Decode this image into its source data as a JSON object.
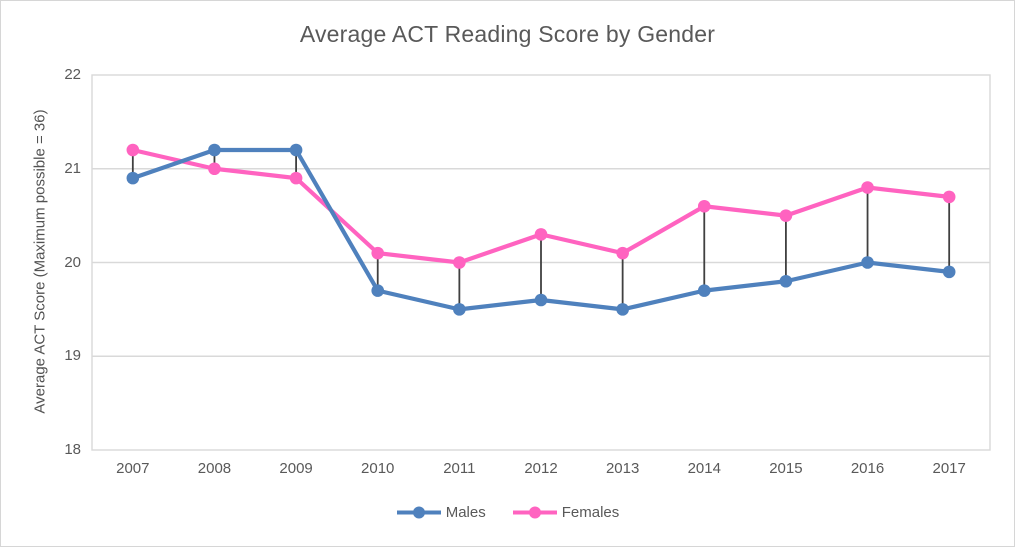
{
  "chart_data": {
    "type": "line",
    "title": "Average ACT Reading Score by Gender",
    "xlabel": "",
    "ylabel": "Average ACT Score (Maximum possible = 36)",
    "categories": [
      "2007",
      "2008",
      "2009",
      "2010",
      "2011",
      "2012",
      "2013",
      "2014",
      "2015",
      "2016",
      "2017"
    ],
    "series": [
      {
        "name": "Males",
        "color": "#4f81bd",
        "values": [
          20.9,
          21.2,
          21.2,
          19.7,
          19.5,
          19.6,
          19.5,
          19.7,
          19.8,
          20.0,
          19.9
        ]
      },
      {
        "name": "Females",
        "color": "#ff63c0",
        "values": [
          21.2,
          21.0,
          20.9,
          20.1,
          20.0,
          20.3,
          20.1,
          20.6,
          20.5,
          20.8,
          20.7
        ]
      }
    ],
    "ylim": [
      18,
      22
    ],
    "y_tick_step": 1,
    "grid": true,
    "high_low_lines": true,
    "legend_position": "bottom",
    "marker": "circle"
  },
  "colors": {
    "gridline": "#d9d9d9",
    "plot_border": "#d9d9d9",
    "high_low_line": "#404040",
    "text": "#595959",
    "background": "#ffffff",
    "canvas_border": "#d6d6d6"
  }
}
